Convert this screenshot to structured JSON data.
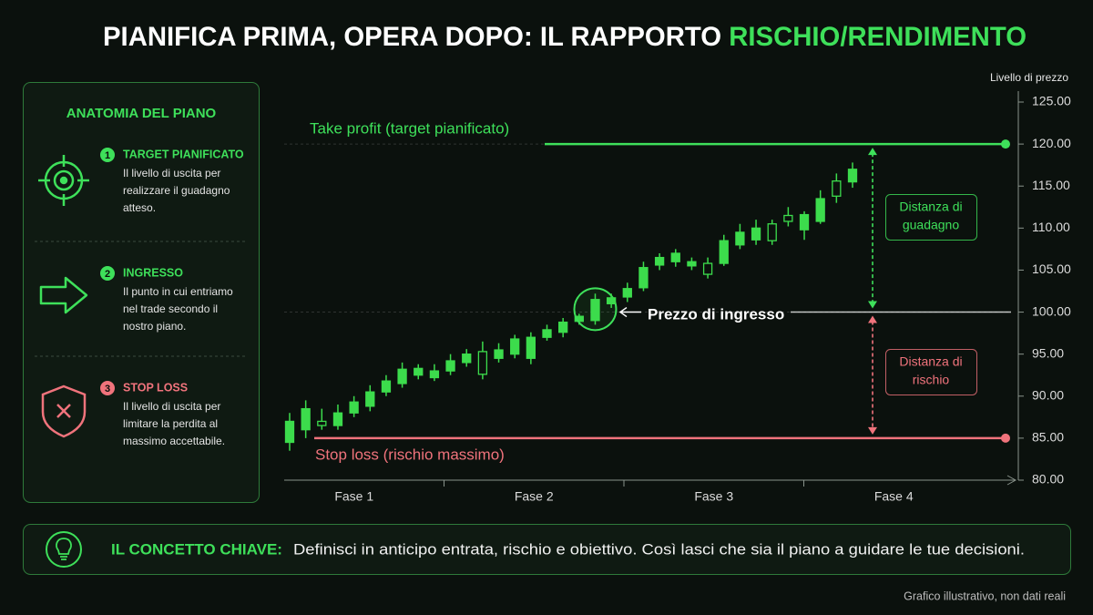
{
  "chart_data": {
    "type": "candlestick",
    "title": "PIANIFICA PRIMA, OPERA DOPO: IL RAPPORTO ",
    "title_highlight": "RISCHIO/RENDIMENTO",
    "y_label": "Livello di prezzo",
    "categories": [
      "Fase 1",
      "Fase 2",
      "Fase 3",
      "Fase 4"
    ],
    "ylim": [
      80,
      125
    ],
    "yticks": [
      {
        "value": 125,
        "label": "125.00"
      },
      {
        "value": 120,
        "label": "120.00"
      },
      {
        "value": 115,
        "label": "115.00"
      },
      {
        "value": 110,
        "label": "110.00"
      },
      {
        "value": 105,
        "label": "105.00"
      },
      {
        "value": 100,
        "label": "100.00"
      },
      {
        "value": 95,
        "label": "95.00"
      },
      {
        "value": 90,
        "label": "90.00"
      },
      {
        "value": 85,
        "label": "85.00"
      },
      {
        "value": 80,
        "label": "80.00"
      }
    ],
    "color": "#3cdc4c",
    "candles": [
      {
        "open": 84.5,
        "high": 88,
        "low": 83.5,
        "close": 87
      },
      {
        "open": 86,
        "high": 89.5,
        "low": 85,
        "close": 88.5
      },
      {
        "open": 87,
        "high": 88.5,
        "low": 86,
        "close": 86.5
      },
      {
        "open": 86.5,
        "high": 89,
        "low": 86,
        "close": 88
      },
      {
        "open": 88,
        "high": 90,
        "low": 87.5,
        "close": 89.3
      },
      {
        "open": 88.8,
        "high": 91.3,
        "low": 88.2,
        "close": 90.5
      },
      {
        "open": 90.5,
        "high": 92.5,
        "low": 90,
        "close": 91.8
      },
      {
        "open": 91.5,
        "high": 94,
        "low": 91,
        "close": 93.2
      },
      {
        "open": 92.5,
        "high": 93.8,
        "low": 92,
        "close": 93.3
      },
      {
        "open": 92.2,
        "high": 93.8,
        "low": 91.8,
        "close": 93
      },
      {
        "open": 93,
        "high": 95,
        "low": 92.5,
        "close": 94.2
      },
      {
        "open": 94,
        "high": 95.6,
        "low": 93.5,
        "close": 95
      },
      {
        "open": 95.3,
        "high": 96.5,
        "low": 92,
        "close": 92.6
      },
      {
        "open": 94.5,
        "high": 96.3,
        "low": 94,
        "close": 95.5
      },
      {
        "open": 95,
        "high": 97.3,
        "low": 94.5,
        "close": 96.8
      },
      {
        "open": 94.5,
        "high": 97.6,
        "low": 93.8,
        "close": 97
      },
      {
        "open": 97,
        "high": 98.5,
        "low": 96.6,
        "close": 97.9
      },
      {
        "open": 97.6,
        "high": 99.3,
        "low": 97,
        "close": 98.8
      },
      {
        "open": 98.9,
        "high": 99.8,
        "low": 98.5,
        "close": 99.5
      },
      {
        "open": 99,
        "high": 102.2,
        "low": 98.5,
        "close": 101.5
      },
      {
        "open": 101,
        "high": 102.2,
        "low": 100.5,
        "close": 101.7
      },
      {
        "open": 101.8,
        "high": 103.5,
        "low": 101.2,
        "close": 102.8
      },
      {
        "open": 102.9,
        "high": 106,
        "low": 102.5,
        "close": 105.3
      },
      {
        "open": 105.6,
        "high": 107,
        "low": 105,
        "close": 106.5
      },
      {
        "open": 106,
        "high": 107.5,
        "low": 105.4,
        "close": 107
      },
      {
        "open": 105.5,
        "high": 106.5,
        "low": 105,
        "close": 106
      },
      {
        "open": 105.8,
        "high": 106.5,
        "low": 104,
        "close": 104.5
      },
      {
        "open": 105.8,
        "high": 109.2,
        "low": 105.5,
        "close": 108.5
      },
      {
        "open": 108,
        "high": 110.5,
        "low": 107.5,
        "close": 109.5
      },
      {
        "open": 108.6,
        "high": 111,
        "low": 108,
        "close": 110
      },
      {
        "open": 110.5,
        "high": 111,
        "low": 108,
        "close": 108.5
      },
      {
        "open": 111.5,
        "high": 112.5,
        "low": 110.2,
        "close": 110.8
      },
      {
        "open": 109.8,
        "high": 112,
        "low": 108.6,
        "close": 111.6
      },
      {
        "open": 110.8,
        "high": 114.5,
        "low": 110.5,
        "close": 113.5
      },
      {
        "open": 115.6,
        "high": 116.5,
        "low": 113,
        "close": 113.8
      },
      {
        "open": 115.5,
        "high": 117.8,
        "low": 114.8,
        "close": 117
      }
    ],
    "levels": [
      {
        "label": "Take profit (target pianificato)",
        "value": 120,
        "color": "#3ee05a"
      },
      {
        "label": "Prezzo di ingresso",
        "value": 100,
        "color": "#ffffff"
      },
      {
        "label": "Stop loss (rischio massimo)",
        "value": 85,
        "color": "#f0737c"
      }
    ],
    "distances": [
      {
        "lines": [
          "Distanza di",
          "guadagno"
        ],
        "color": "#3ee05a"
      },
      {
        "lines": [
          "Distanza di",
          "rischio"
        ],
        "color": "#f0737c"
      }
    ]
  },
  "panel": {
    "title": "ANATOMIA DEL PIANO",
    "items": [
      {
        "number": "1",
        "title": "TARGET PIANIFICATO",
        "text": [
          "Il livello di uscita per",
          "realizzare il guadagno",
          "atteso."
        ]
      },
      {
        "number": "2",
        "title": "INGRESSO",
        "text": [
          "Il punto in cui entriamo",
          "nel trade secondo il",
          "nostro piano."
        ]
      },
      {
        "number": "3",
        "title": "STOP LOSS",
        "text": [
          "Il livello di uscita per",
          "limitare la perdita al",
          "massimo accettabile."
        ]
      }
    ]
  },
  "key_concept": {
    "label": "IL CONCETTO CHIAVE:",
    "text": "Definisci in anticipo entrata, rischio e obiettivo. Così lasci che sia il piano a guidare le tue decisioni."
  },
  "note": "Grafico illustrativo, non dati reali"
}
